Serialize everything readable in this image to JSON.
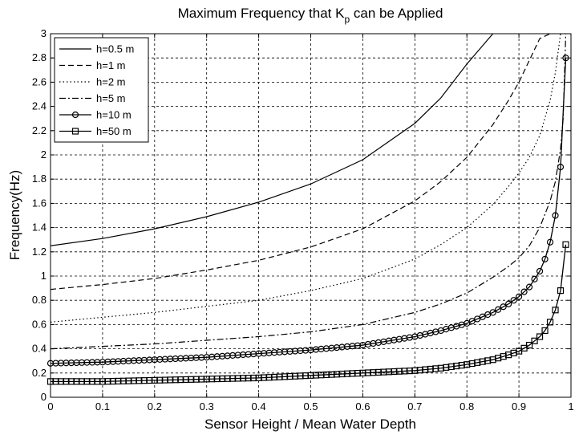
{
  "chart_data": {
    "type": "line",
    "title": "Maximum Frequency that K",
    "title_subscript": "p",
    "title_suffix": " can be Applied",
    "xlabel": "Sensor Height / Mean Water Depth",
    "ylabel": "Frequency(Hz)",
    "xlim": [
      0,
      1
    ],
    "ylim": [
      0,
      3
    ],
    "grid": true,
    "legend_position": "top-left",
    "xticks": [
      0,
      0.1,
      0.2,
      0.3,
      0.4,
      0.5,
      0.6,
      0.7,
      0.8,
      0.9,
      1
    ],
    "xtick_labels": [
      "0",
      "0.1",
      "0.2",
      "0.3",
      "0.4",
      "0.5",
      "0.6",
      "0.7",
      "0.8",
      "0.9",
      "1"
    ],
    "yticks": [
      0,
      0.2,
      0.4,
      0.6,
      0.8,
      1,
      1.2,
      1.4,
      1.6,
      1.8,
      2,
      2.2,
      2.4,
      2.6,
      2.8,
      3
    ],
    "ytick_labels": [
      "0",
      "0.2",
      "0.4",
      "0.6",
      "0.8",
      "1",
      "1.2",
      "1.4",
      "1.6",
      "1.8",
      "2",
      "2.2",
      "2.4",
      "2.6",
      "2.8",
      "3"
    ],
    "series": [
      {
        "name": "h=0.5 m",
        "line_style": "solid",
        "marker": "none",
        "x": [
          0,
          0.1,
          0.2,
          0.3,
          0.4,
          0.5,
          0.6,
          0.7,
          0.75,
          0.8,
          0.85
        ],
        "y": [
          1.25,
          1.31,
          1.39,
          1.49,
          1.61,
          1.76,
          1.96,
          2.26,
          2.47,
          2.75,
          3.0
        ]
      },
      {
        "name": "h=1 m",
        "line_style": "dashed",
        "marker": "none",
        "x": [
          0,
          0.1,
          0.2,
          0.3,
          0.4,
          0.5,
          0.6,
          0.7,
          0.75,
          0.8,
          0.85,
          0.88,
          0.9,
          0.92,
          0.94,
          0.96
        ],
        "y": [
          0.89,
          0.93,
          0.98,
          1.05,
          1.13,
          1.24,
          1.39,
          1.62,
          1.78,
          1.98,
          2.25,
          2.45,
          2.6,
          2.78,
          2.96,
          3.0
        ]
      },
      {
        "name": "h=2 m",
        "line_style": "dotted",
        "marker": "none",
        "x": [
          0,
          0.1,
          0.2,
          0.3,
          0.4,
          0.5,
          0.6,
          0.7,
          0.75,
          0.8,
          0.85,
          0.88,
          0.9,
          0.92,
          0.94,
          0.96,
          0.97,
          0.98
        ],
        "y": [
          0.62,
          0.66,
          0.7,
          0.75,
          0.8,
          0.88,
          0.98,
          1.14,
          1.26,
          1.4,
          1.59,
          1.74,
          1.85,
          1.98,
          2.16,
          2.45,
          2.68,
          3.0
        ]
      },
      {
        "name": "h=5 m",
        "line_style": "dashdot",
        "marker": "none",
        "x": [
          0,
          0.1,
          0.2,
          0.3,
          0.4,
          0.5,
          0.6,
          0.7,
          0.75,
          0.8,
          0.85,
          0.88,
          0.9,
          0.92,
          0.94,
          0.96,
          0.97,
          0.98,
          0.985,
          0.99
        ],
        "y": [
          0.4,
          0.42,
          0.44,
          0.47,
          0.5,
          0.54,
          0.6,
          0.7,
          0.77,
          0.86,
          0.99,
          1.08,
          1.15,
          1.25,
          1.4,
          1.62,
          1.78,
          2.05,
          2.3,
          3.0
        ]
      },
      {
        "name": "h=10 m",
        "line_style": "solid",
        "marker": "circle",
        "x": [
          0,
          0.1,
          0.2,
          0.3,
          0.4,
          0.5,
          0.6,
          0.7,
          0.75,
          0.8,
          0.85,
          0.88,
          0.9,
          0.92,
          0.94,
          0.95,
          0.96,
          0.97,
          0.98,
          0.99
        ],
        "y": [
          0.28,
          0.29,
          0.31,
          0.33,
          0.36,
          0.39,
          0.43,
          0.5,
          0.55,
          0.61,
          0.7,
          0.77,
          0.83,
          0.91,
          1.04,
          1.14,
          1.28,
          1.5,
          1.9,
          2.8
        ]
      },
      {
        "name": "h=50 m",
        "line_style": "solid",
        "marker": "square",
        "x": [
          0,
          0.1,
          0.2,
          0.3,
          0.4,
          0.5,
          0.6,
          0.7,
          0.75,
          0.8,
          0.85,
          0.88,
          0.9,
          0.92,
          0.94,
          0.95,
          0.96,
          0.97,
          0.98,
          0.99
        ],
        "y": [
          0.13,
          0.13,
          0.14,
          0.15,
          0.16,
          0.18,
          0.2,
          0.22,
          0.24,
          0.27,
          0.31,
          0.35,
          0.38,
          0.43,
          0.5,
          0.55,
          0.62,
          0.72,
          0.88,
          1.26
        ]
      }
    ]
  }
}
